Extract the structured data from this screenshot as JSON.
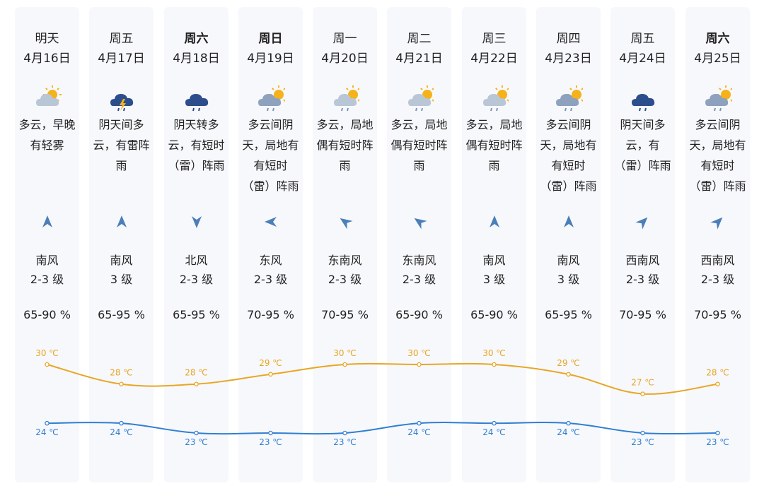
{
  "days": [
    {
      "day": "明天",
      "date": "4月16日",
      "bold": false,
      "icon": "partly-cloudy-icon",
      "desc": [
        "多云，早晚",
        "有轻雾"
      ],
      "wind_dir": "南风",
      "wind_level": "2-3 级",
      "wind_arrow": "south-wind-arrow-icon",
      "humidity": "65-90 %",
      "high": "30 ℃",
      "low": "24 ℃"
    },
    {
      "day": "周五",
      "date": "4月17日",
      "bold": false,
      "icon": "thunderstorm-icon",
      "desc": [
        "阴天间多",
        "云，有雷阵",
        "雨"
      ],
      "wind_dir": "南风",
      "wind_level": "3 级",
      "wind_arrow": "south-wind-arrow-icon",
      "humidity": "65-95 %",
      "high": "28 ℃",
      "low": "24 ℃"
    },
    {
      "day": "周六",
      "date": "4月18日",
      "bold": true,
      "icon": "rain-cloud-icon",
      "desc": [
        "阴天转多",
        "云，有短时",
        "（雷）阵雨"
      ],
      "wind_dir": "北风",
      "wind_level": "2-3 级",
      "wind_arrow": "north-wind-arrow-icon",
      "humidity": "65-95 %",
      "high": "28 ℃",
      "low": "23 ℃"
    },
    {
      "day": "周日",
      "date": "4月19日",
      "bold": true,
      "icon": "cloudy-rain-icon",
      "desc": [
        "多云间阴",
        "天，局地有",
        "有短时",
        "（雷）阵雨"
      ],
      "wind_dir": "东风",
      "wind_level": "2-3 级",
      "wind_arrow": "east-wind-arrow-icon",
      "humidity": "70-95 %",
      "high": "29 ℃",
      "low": "23 ℃"
    },
    {
      "day": "周一",
      "date": "4月20日",
      "bold": false,
      "icon": "sun-cloud-rain-icon",
      "desc": [
        "多云，局地",
        "偶有短时阵",
        "雨"
      ],
      "wind_dir": "东南风",
      "wind_level": "2-3 级",
      "wind_arrow": "southeast-wind-arrow-icon",
      "humidity": "70-95 %",
      "high": "30 ℃",
      "low": "23 ℃"
    },
    {
      "day": "周二",
      "date": "4月21日",
      "bold": false,
      "icon": "sun-cloud-rain-icon",
      "desc": [
        "多云，局地",
        "偶有短时阵",
        "雨"
      ],
      "wind_dir": "东南风",
      "wind_level": "2-3 级",
      "wind_arrow": "southeast-wind-arrow-icon",
      "humidity": "65-90 %",
      "high": "30 ℃",
      "low": "24 ℃"
    },
    {
      "day": "周三",
      "date": "4月22日",
      "bold": false,
      "icon": "sun-cloud-rain-icon",
      "desc": [
        "多云，局地",
        "偶有短时阵",
        "雨"
      ],
      "wind_dir": "南风",
      "wind_level": "3 级",
      "wind_arrow": "south-wind-arrow-icon",
      "humidity": "65-90 %",
      "high": "30 ℃",
      "low": "24 ℃"
    },
    {
      "day": "周四",
      "date": "4月23日",
      "bold": false,
      "icon": "cloudy-rain-icon",
      "desc": [
        "多云间阴",
        "天，局地有",
        "有短时",
        "（雷）阵雨"
      ],
      "wind_dir": "南风",
      "wind_level": "3 级",
      "wind_arrow": "south-wind-arrow-icon",
      "humidity": "65-95 %",
      "high": "29 ℃",
      "low": "24 ℃"
    },
    {
      "day": "周五",
      "date": "4月24日",
      "bold": false,
      "icon": "rain-cloud-icon",
      "desc": [
        "阴天间多",
        "云，有",
        "（雷）阵雨"
      ],
      "wind_dir": "西南风",
      "wind_level": "2-3 级",
      "wind_arrow": "southwest-wind-arrow-icon",
      "humidity": "70-95 %",
      "high": "27 ℃",
      "low": "23 ℃"
    },
    {
      "day": "周六",
      "date": "4月25日",
      "bold": true,
      "icon": "cloudy-rain-icon",
      "desc": [
        "多云间阴",
        "天，局地有",
        "有短时",
        "（雷）阵雨"
      ],
      "wind_dir": "西南风",
      "wind_level": "2-3 级",
      "wind_arrow": "southwest-wind-arrow-icon",
      "humidity": "70-95 %",
      "high": "28 ℃",
      "low": "23 ℃"
    }
  ],
  "colors": {
    "high_line": "#e8a623",
    "low_line": "#2f7fd1",
    "arrow": "#4a7fb8",
    "card_bg": "#f7f8fc"
  },
  "chart_data": {
    "type": "line",
    "x": [
      "4月16日",
      "4月17日",
      "4月18日",
      "4月19日",
      "4月20日",
      "4月21日",
      "4月22日",
      "4月23日",
      "4月24日",
      "4月25日"
    ],
    "series": [
      {
        "values": [
          30,
          28,
          28,
          29,
          30,
          30,
          30,
          29,
          27,
          28
        ]
      },
      {
        "values": [
          24,
          24,
          23,
          23,
          23,
          24,
          24,
          24,
          23,
          23
        ]
      }
    ],
    "unit": "℃"
  }
}
